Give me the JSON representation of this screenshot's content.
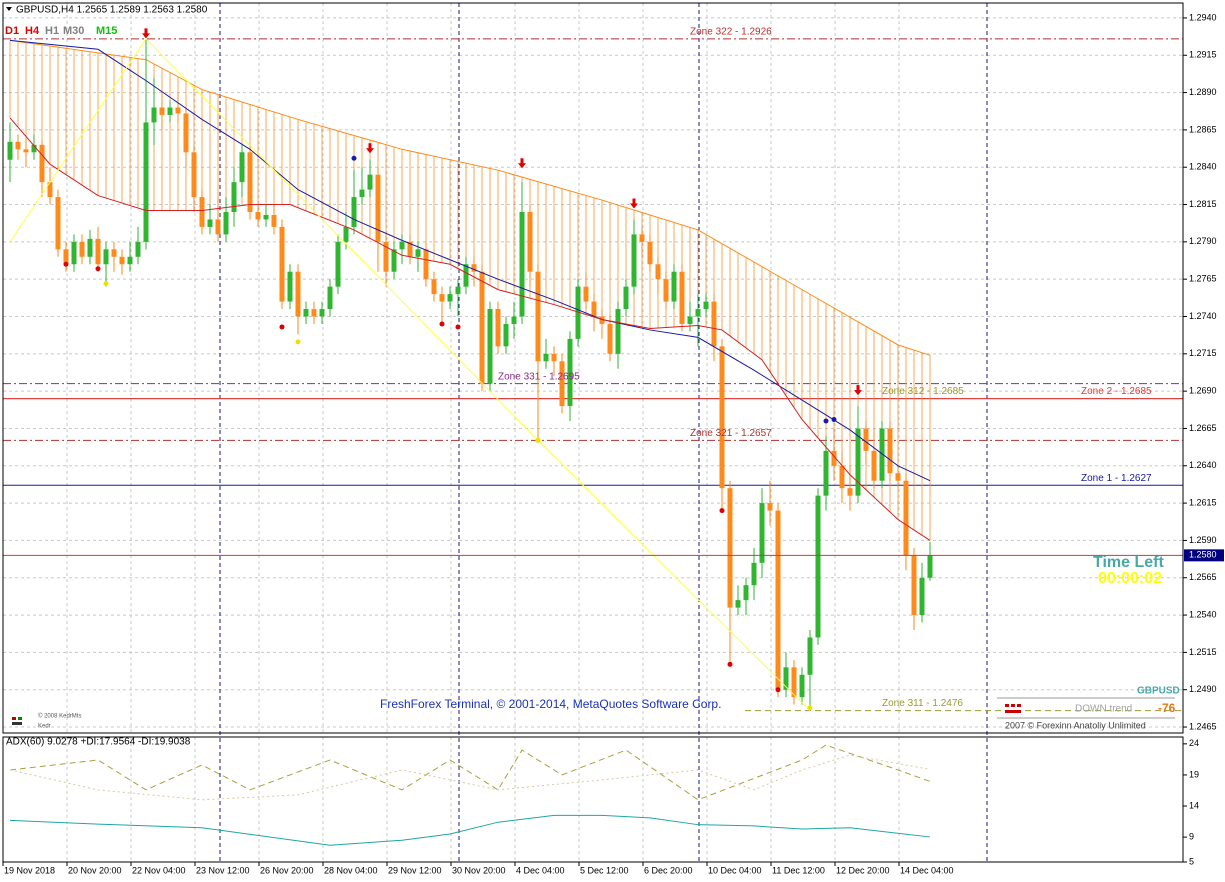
{
  "chart_data": {
    "type": "candlestick",
    "header": "GBPUSD,H4  1.2565 1.2589 1.2563 1.2580",
    "timeframes": [
      {
        "label": "D1",
        "color": "#e00000"
      },
      {
        "label": "H4",
        "color": "#e00000"
      },
      {
        "label": "H1",
        "color": "#808080"
      },
      {
        "label": "M30",
        "color": "#808080"
      },
      {
        "label": "M15",
        "color": "#10c010"
      }
    ],
    "categories": [
      "19 Nov 2018",
      null,
      null,
      null,
      null,
      null,
      null,
      null,
      "20 Nov 20:00",
      null,
      null,
      null,
      null,
      null,
      null,
      null,
      "22 Nov 04:00",
      null,
      null,
      null,
      null,
      null,
      null,
      null,
      "23 Nov 12:00",
      null,
      null,
      null,
      null,
      null,
      null,
      null,
      "26 Nov 20:00",
      null,
      null,
      null,
      null,
      null,
      null,
      null,
      "28 Nov 04:00",
      null,
      null,
      null,
      null,
      null,
      null,
      null,
      "29 Nov 12:00",
      null,
      null,
      null,
      null,
      null,
      null,
      null,
      "30 Nov 20:00",
      null,
      null,
      null,
      null,
      null,
      null,
      null,
      "4 Dec 04:00",
      null,
      null,
      null,
      null,
      null,
      null,
      null,
      "5 Dec 12:00",
      null,
      null,
      null,
      null,
      null,
      null,
      null,
      "6 Dec 20:00",
      null,
      null,
      null,
      null,
      null,
      null,
      null,
      "10 Dec 04:00",
      null,
      null,
      null,
      null,
      null,
      null,
      null,
      "11 Dec 12:00",
      null,
      null,
      null,
      null,
      null,
      null,
      null,
      "12 Dec 20:00",
      null,
      null,
      null,
      null,
      null,
      null,
      null,
      "14 Dec 04:00",
      null,
      null,
      null
    ],
    "open": [
      1.2845,
      1.2857,
      1.2852,
      1.285,
      1.2855,
      1.283,
      1.282,
      1.2785,
      1.2775,
      1.279,
      1.278,
      1.2792,
      1.2775,
      1.2785,
      1.278,
      1.2775,
      1.278,
      1.279,
      1.287,
      1.288,
      1.2875,
      1.288,
      1.2876,
      1.285,
      1.282,
      1.28,
      1.2805,
      1.2795,
      1.281,
      1.283,
      1.285,
      1.281,
      1.2805,
      1.2808,
      1.28,
      1.275,
      1.277,
      1.274,
      1.2745,
      1.274,
      1.2745,
      1.276,
      1.279,
      1.28,
      1.282,
      1.2825,
      1.2835,
      1.279,
      1.277,
      1.2785,
      1.279,
      1.278,
      1.2785,
      1.2765,
      1.2755,
      1.275,
      1.2755,
      1.276,
      1.2775,
      1.277,
      1.2695,
      1.2745,
      1.272,
      1.2735,
      1.274,
      1.281,
      1.277,
      1.271,
      1.2715,
      1.271,
      1.268,
      1.2725,
      1.276,
      1.275,
      1.274,
      1.2735,
      1.2715,
      1.2745,
      1.276,
      1.2795,
      1.279,
      1.2775,
      1.2765,
      1.275,
      1.277,
      1.2735,
      1.274,
      1.2745,
      1.275,
      1.272,
      1.2625,
      1.2545,
      1.255,
      1.256,
      1.2575,
      1.2615,
      1.261,
      1.249,
      1.2505,
      1.2485,
      1.25,
      1.2525,
      1.262,
      1.265,
      1.264,
      1.2625,
      1.262,
      1.2665,
      1.265,
      1.263,
      1.2665,
      1.2635,
      1.263,
      1.258,
      1.254,
      1.2565
    ],
    "high": [
      1.287,
      1.2862,
      1.286,
      1.2862,
      1.2858,
      1.284,
      1.2825,
      1.279,
      1.2795,
      1.2795,
      1.2798,
      1.28,
      1.279,
      1.279,
      1.2785,
      1.279,
      1.28,
      1.2926,
      1.29,
      1.289,
      1.2885,
      1.289,
      1.288,
      1.2855,
      1.2825,
      1.2815,
      1.282,
      1.282,
      1.284,
      1.2855,
      1.2855,
      1.2815,
      1.2815,
      1.2815,
      1.2805,
      1.2775,
      1.2775,
      1.275,
      1.275,
      1.275,
      1.2765,
      1.2795,
      1.281,
      1.2838,
      1.284,
      1.2845,
      1.284,
      1.2795,
      1.279,
      1.2795,
      1.2795,
      1.279,
      1.279,
      1.277,
      1.276,
      1.276,
      1.2765,
      1.278,
      1.278,
      1.2775,
      1.275,
      1.275,
      1.274,
      1.275,
      1.283,
      1.2815,
      1.2775,
      1.2725,
      1.272,
      1.2715,
      1.273,
      1.2765,
      1.277,
      1.2755,
      1.2745,
      1.274,
      1.275,
      1.2765,
      1.2805,
      1.28,
      1.2795,
      1.278,
      1.277,
      1.2775,
      1.2775,
      1.275,
      1.2755,
      1.2755,
      1.2755,
      1.2725,
      1.263,
      1.256,
      1.2565,
      1.2585,
      1.2625,
      1.263,
      1.2615,
      1.2515,
      1.251,
      1.2505,
      1.253,
      1.2625,
      1.266,
      1.2665,
      1.265,
      1.264,
      1.268,
      1.267,
      1.2665,
      1.267,
      1.267,
      1.264,
      1.2635,
      1.2585,
      1.2575,
      1.2589
    ],
    "low": [
      1.283,
      1.2845,
      1.284,
      1.2845,
      1.282,
      1.2815,
      1.278,
      1.277,
      1.277,
      1.2775,
      1.2775,
      1.277,
      1.276,
      1.277,
      1.2768,
      1.277,
      1.2775,
      1.2785,
      1.2855,
      1.2865,
      1.287,
      1.287,
      1.284,
      1.281,
      1.2795,
      1.2795,
      1.279,
      1.279,
      1.28,
      1.282,
      1.2805,
      1.28,
      1.28,
      1.2795,
      1.2745,
      1.2745,
      1.2728,
      1.2735,
      1.2735,
      1.2735,
      1.274,
      1.2755,
      1.2785,
      1.2795,
      1.2815,
      1.282,
      1.277,
      1.276,
      1.2765,
      1.2775,
      1.2775,
      1.277,
      1.276,
      1.275,
      1.2735,
      1.2745,
      1.274,
      1.2755,
      1.276,
      1.269,
      1.269,
      1.2715,
      1.2715,
      1.2725,
      1.2735,
      1.276,
      1.2657,
      1.2705,
      1.27,
      1.2675,
      1.267,
      1.272,
      1.2745,
      1.273,
      1.2725,
      1.271,
      1.2705,
      1.274,
      1.2755,
      1.278,
      1.277,
      1.2755,
      1.2745,
      1.2745,
      1.273,
      1.273,
      1.272,
      1.274,
      1.271,
      1.261,
      1.2507,
      1.254,
      1.254,
      1.255,
      1.2565,
      1.26,
      1.2485,
      1.2485,
      1.248,
      1.248,
      1.2476,
      1.252,
      1.261,
      1.263,
      1.2615,
      1.261,
      1.2615,
      1.264,
      1.2625,
      1.2625,
      1.263,
      1.2625,
      1.257,
      1.253,
      1.2535,
      1.2563
    ],
    "close": [
      1.2857,
      1.2852,
      1.285,
      1.2855,
      1.283,
      1.282,
      1.2785,
      1.2775,
      1.279,
      1.278,
      1.2792,
      1.2775,
      1.2785,
      1.278,
      1.2775,
      1.278,
      1.279,
      1.287,
      1.288,
      1.2875,
      1.288,
      1.2876,
      1.285,
      1.282,
      1.28,
      1.2805,
      1.2795,
      1.281,
      1.283,
      1.285,
      1.281,
      1.2805,
      1.2808,
      1.28,
      1.275,
      1.277,
      1.274,
      1.2745,
      1.274,
      1.2745,
      1.276,
      1.279,
      1.28,
      1.282,
      1.2825,
      1.2835,
      1.279,
      1.277,
      1.2785,
      1.279,
      1.278,
      1.2785,
      1.2765,
      1.2755,
      1.275,
      1.2755,
      1.276,
      1.2775,
      1.277,
      1.2695,
      1.2745,
      1.272,
      1.2735,
      1.274,
      1.281,
      1.277,
      1.271,
      1.2715,
      1.271,
      1.268,
      1.2725,
      1.276,
      1.275,
      1.274,
      1.2735,
      1.2715,
      1.2745,
      1.276,
      1.2795,
      1.279,
      1.2775,
      1.2765,
      1.275,
      1.277,
      1.2735,
      1.274,
      1.2745,
      1.275,
      1.272,
      1.2625,
      1.2545,
      1.255,
      1.256,
      1.2575,
      1.2615,
      1.261,
      1.249,
      1.2505,
      1.2485,
      1.25,
      1.2525,
      1.262,
      1.265,
      1.264,
      1.2625,
      1.262,
      1.2665,
      1.265,
      1.263,
      1.2665,
      1.2635,
      1.263,
      1.258,
      1.254,
      1.2565,
      1.258
    ],
    "up_color": "#2fb52f",
    "down_color": "#ff8a1c",
    "ylim": [
      1.2461,
      1.295
    ],
    "yticks": [
      1.2465,
      {
        "value": 1.249,
        "label": "1.2490"
      },
      1.2515,
      {
        "value": 1.254,
        "label": "1.2540"
      },
      1.2565,
      {
        "value": 1.259,
        "label": "1.2590"
      },
      1.2615,
      {
        "value": 1.264,
        "label": "1.2640"
      },
      1.2665,
      {
        "value": 1.269,
        "label": "1.2690"
      },
      1.2715,
      {
        "value": 1.274,
        "label": "1.2740"
      },
      1.2765,
      {
        "value": 1.279,
        "label": "1.2790"
      },
      1.2815,
      {
        "value": 1.284,
        "label": "1.2840"
      },
      1.2865,
      {
        "value": 1.289,
        "label": "1.2890"
      },
      1.2915,
      {
        "value": 1.294,
        "label": "1.2940"
      }
    ],
    "grid": true,
    "envelope": {
      "color": "#ff8a1c",
      "x": [
        0,
        17,
        24,
        36,
        49,
        61,
        74,
        86,
        99,
        111,
        115
      ],
      "values": [
        1.2925,
        1.2912,
        1.2892,
        1.2872,
        1.2852,
        1.2838,
        1.2818,
        1.2798,
        1.2758,
        1.2721,
        1.2714
      ]
    },
    "overlays": [
      {
        "color": "#1a1aa0",
        "x": [
          0,
          11,
          17,
          24,
          30,
          36,
          43,
          49,
          55,
          61,
          68,
          74,
          80,
          86,
          93,
          99,
          105,
          111,
          115
        ],
        "values": [
          1.2925,
          1.2919,
          1.2898,
          1.2872,
          1.2852,
          1.2825,
          1.2805,
          1.2791,
          1.2778,
          1.2765,
          1.2751,
          1.2738,
          1.2731,
          1.2726,
          1.2704,
          1.2684,
          1.2664,
          1.264,
          1.263
        ]
      },
      {
        "color": "#d42020",
        "x": [
          0,
          5,
          11,
          17,
          24,
          30,
          35,
          43,
          49,
          55,
          61,
          68,
          74,
          80,
          86,
          89,
          94,
          99,
          105,
          111,
          115
        ],
        "values": [
          1.2873,
          1.2842,
          1.2821,
          1.2811,
          1.2811,
          1.2815,
          1.2815,
          1.2798,
          1.2781,
          1.2775,
          1.2758,
          1.2748,
          1.2738,
          1.2732,
          1.2734,
          1.2731,
          1.2711,
          1.2671,
          1.2634,
          1.2604,
          1.259
        ]
      },
      {
        "color": "#ffff40",
        "x": [
          0,
          17,
          66,
          100
        ],
        "values": [
          1.279,
          1.2926,
          1.2657,
          1.2476
        ]
      }
    ],
    "markers": [
      {
        "shape": "arrow",
        "color": "#e00000",
        "x": [
          17,
          45,
          64,
          78,
          106
        ],
        "values": [
          1.2927,
          1.285,
          1.284,
          1.2813,
          1.2688
        ]
      },
      {
        "shape": "dot",
        "color": "#e00000",
        "x": [
          7,
          11,
          34,
          54,
          56,
          89,
          90,
          96
        ],
        "values": [
          1.2775,
          1.2772,
          1.2733,
          1.2735,
          1.2733,
          1.261,
          1.2507,
          1.249
        ]
      },
      {
        "shape": "dot",
        "color": "#1a1ab0",
        "x": [
          43,
          102,
          103
        ],
        "values": [
          1.2846,
          1.267,
          1.2671
        ]
      },
      {
        "shape": "dot",
        "color": "#f0e000",
        "x": [
          12,
          36,
          66,
          100
        ],
        "values": [
          1.2762,
          1.2723,
          1.2657,
          1.2478
        ]
      }
    ],
    "zones": [
      {
        "label": "Zone 322 - 1.2926",
        "value": 1.2926,
        "color": "#b03030",
        "dash": "dashdot"
      },
      {
        "label": "Zone 331 - 1.2695",
        "value": 1.2695,
        "color": "#8a2a8a",
        "dash": "dashdot"
      },
      {
        "label": "Zone 312 - 1.2685",
        "value": 1.2685,
        "color": "#e03a3a",
        "dash": "solid",
        "label_color": "#9a9a30"
      },
      {
        "label": "Zone 2 - 1.2685",
        "value": 1.2685,
        "color": "#e03a3a",
        "dash": "solid"
      },
      {
        "label": "Zone 321 - 1.2657",
        "value": 1.2657,
        "color": "#b03030",
        "dash": "dashdot"
      },
      {
        "label": "Zone 1 - 1.2627",
        "value": 1.2627,
        "color": "#1a1aa0",
        "dash": "solid"
      },
      {
        "label": "Zone 311 - 1.2476",
        "value": 1.2476,
        "color": "#9a9a30",
        "dash": "dashed"
      }
    ],
    "price_line": {
      "value": 1.258,
      "label": "1.2580",
      "color": "#e03030"
    },
    "texts": {
      "time_left": "Time Left",
      "timer": "00:00:02",
      "copyright": "FreshForex Terminal, © 2001-2014, MetaQuotes Software Corp.",
      "symbol": "GBPUSD",
      "trend": "DOWN trend",
      "trend_value": "-76",
      "forexinn": "2007 © Forexinn Anatoliy Unlimited",
      "kedr1": "© 2008 KedrMts",
      "kedr2": "Kedr"
    },
    "sub": {
      "type": "line",
      "header": "ADX(60) 9.0278 +DI:17.9564 -DI:19.9038",
      "ylim": [
        5,
        25.1
      ],
      "yticks": [
        24,
        19,
        14,
        9,
        5
      ],
      "series": [
        {
          "color": "#1fa5a5",
          "dash": "solid",
          "x": [
            0,
            11,
            24,
            40,
            49,
            55,
            61,
            68,
            74,
            80,
            86,
            93,
            99,
            105,
            115
          ],
          "values": [
            11.7,
            11.1,
            10.5,
            7.7,
            8.5,
            9.5,
            11.4,
            12.5,
            12.5,
            12.1,
            11,
            10.8,
            10.3,
            10.5,
            9.03
          ]
        },
        {
          "color": "#a8a040",
          "dash": "dashed",
          "x": [
            0,
            11,
            17,
            24,
            30,
            40,
            49,
            55,
            61,
            64,
            69,
            77,
            86,
            99,
            102,
            111,
            115
          ],
          "values": [
            19.8,
            21.4,
            16.6,
            20.6,
            16.6,
            21.4,
            16.6,
            21.4,
            16.6,
            23,
            19,
            23,
            15,
            21.4,
            23.8,
            19.8,
            17.96
          ]
        },
        {
          "color": "#d8c89a",
          "dash": "dotted",
          "x": [
            0,
            11,
            24,
            36,
            49,
            61,
            74,
            86,
            93,
            99,
            105,
            115
          ],
          "values": [
            19.8,
            16.6,
            15,
            15.8,
            19.8,
            16.6,
            18.2,
            19.8,
            16.6,
            19.8,
            22.2,
            19.9
          ]
        }
      ]
    }
  }
}
